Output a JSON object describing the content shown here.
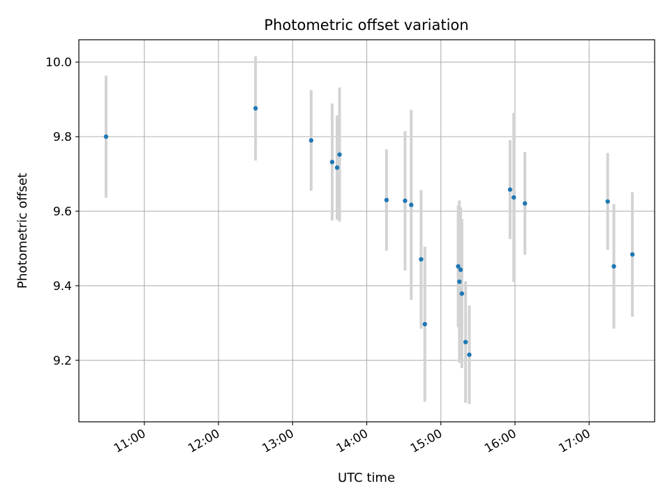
{
  "chart_data": {
    "type": "scatter",
    "title": "Photometric offset variation",
    "xlabel": "UTC time",
    "ylabel": "Photometric offset",
    "xlim": [
      "10:07",
      "17:53"
    ],
    "ylim": [
      9.035,
      10.06
    ],
    "grid": true,
    "x_ticks": [
      "11:00",
      "12:00",
      "13:00",
      "14:00",
      "15:00",
      "16:00",
      "17:00"
    ],
    "y_ticks": [
      "9.2",
      "9.4",
      "9.6",
      "9.8",
      "10.0"
    ],
    "colors": {
      "point": "#1f77b4",
      "errorbar": "#d3d3d3",
      "grid": "#b0b0b0"
    },
    "points": [
      {
        "x": "10:29",
        "y": 9.8,
        "err": 0.164
      },
      {
        "x": "12:30",
        "y": 9.876,
        "err": 0.14
      },
      {
        "x": "13:15",
        "y": 9.79,
        "err": 0.135
      },
      {
        "x": "13:32",
        "y": 9.732,
        "err": 0.157
      },
      {
        "x": "13:36",
        "y": 9.717,
        "err": 0.14
      },
      {
        "x": "13:38",
        "y": 9.752,
        "err": 0.18
      },
      {
        "x": "14:16",
        "y": 9.63,
        "err": 0.136
      },
      {
        "x": "14:31",
        "y": 9.628,
        "err": 0.187
      },
      {
        "x": "14:36",
        "y": 9.617,
        "err": 0.255
      },
      {
        "x": "14:44",
        "y": 9.471,
        "err": 0.186
      },
      {
        "x": "14:47",
        "y": 9.297,
        "err": 0.208
      },
      {
        "x": "15:14",
        "y": 9.452,
        "err": 0.163
      },
      {
        "x": "15:15",
        "y": 9.411,
        "err": 0.218
      },
      {
        "x": "15:16",
        "y": 9.443,
        "err": 0.167
      },
      {
        "x": "15:17",
        "y": 9.379,
        "err": 0.2
      },
      {
        "x": "15:20",
        "y": 9.249,
        "err": 0.163
      },
      {
        "x": "15:23",
        "y": 9.215,
        "err": 0.132
      },
      {
        "x": "15:56",
        "y": 9.658,
        "err": 0.133
      },
      {
        "x": "15:59",
        "y": 9.637,
        "err": 0.227
      },
      {
        "x": "16:08",
        "y": 9.621,
        "err": 0.138
      },
      {
        "x": "17:15",
        "y": 9.626,
        "err": 0.13
      },
      {
        "x": "17:20",
        "y": 9.452,
        "err": 0.167
      },
      {
        "x": "17:35",
        "y": 9.484,
        "err": 0.167
      }
    ]
  }
}
